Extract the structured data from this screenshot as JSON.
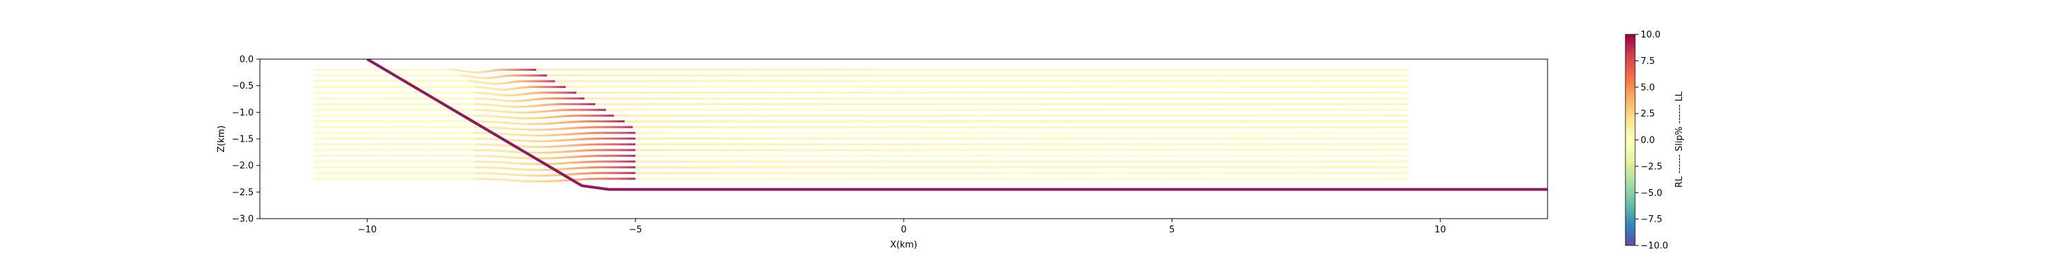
{
  "chart_data": {
    "type": "line",
    "title": "",
    "xlabel": "X(km)",
    "ylabel": "Z(km)",
    "xlim": [
      -12,
      12
    ],
    "ylim": [
      -3.0,
      0.0
    ],
    "x_ticks": [
      -10,
      -5,
      0,
      5,
      10
    ],
    "y_ticks": [
      0.0,
      -0.5,
      -1.0,
      -1.5,
      -2.0,
      -2.5,
      -3.0
    ],
    "x_tick_labels": [
      "−10",
      "−5",
      "0",
      "5",
      "10"
    ],
    "y_tick_labels": [
      "0.0",
      "−0.5",
      "−1.0",
      "−1.5",
      "−2.0",
      "−2.5",
      "−3.0"
    ],
    "grid": false,
    "fault": {
      "color": "#8b1a5e",
      "x": [
        -10.0,
        -6.0,
        -5.5,
        12.0
      ],
      "z": [
        0.0,
        -2.38,
        -2.45,
        -2.45
      ]
    },
    "layers": {
      "count": 20,
      "x_start": -11.0,
      "x_end": 9.4,
      "z_top": -0.2,
      "z_bottom": -2.25,
      "fold_x_left": -8.0,
      "fold_x_right": -5.6
    },
    "colorbar": {
      "label": "RL ------ Slip% ------ LL",
      "min": -10.0,
      "max": 10.0,
      "ticks": [
        10.0,
        7.5,
        5.0,
        2.5,
        0.0,
        -2.5,
        -5.0,
        -7.5,
        -10.0
      ],
      "tick_labels": [
        "10.0",
        "7.5",
        "5.0",
        "2.5",
        "0.0",
        "−2.5",
        "−5.0",
        "−7.5",
        "−10.0"
      ],
      "colormap": "Spectral_r",
      "colors": [
        "#5e4fa2",
        "#3288bd",
        "#66c2a5",
        "#abdda4",
        "#e6f598",
        "#ffffbf",
        "#fee08b",
        "#fdae61",
        "#f46d43",
        "#d53e4f",
        "#9e0142"
      ]
    }
  }
}
